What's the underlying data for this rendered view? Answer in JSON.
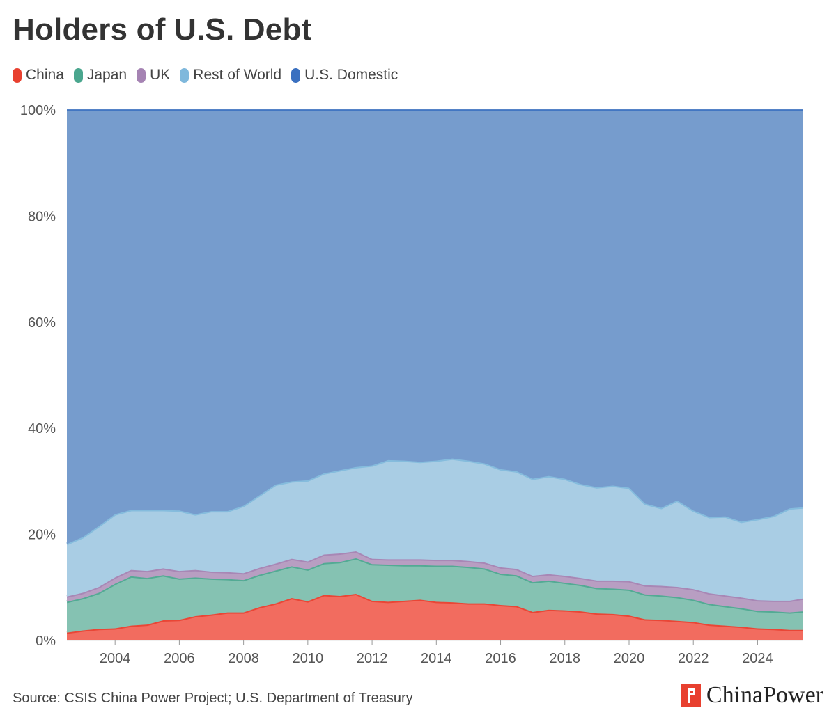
{
  "chart_data": {
    "type": "area",
    "title": "Holders of U.S. Debt",
    "stacking": "percent",
    "x": [
      2002.5,
      2003.0,
      2003.5,
      2004.0,
      2004.5,
      2005.0,
      2005.5,
      2006.0,
      2006.5,
      2007.0,
      2007.5,
      2008.0,
      2008.5,
      2009.0,
      2009.5,
      2010.0,
      2010.5,
      2011.0,
      2011.5,
      2012.0,
      2012.5,
      2013.0,
      2013.5,
      2014.0,
      2014.5,
      2015.0,
      2015.5,
      2016.0,
      2016.5,
      2017.0,
      2017.5,
      2018.0,
      2018.5,
      2019.0,
      2019.5,
      2020.0,
      2020.5,
      2021.0,
      2021.5,
      2022.0,
      2022.5,
      2023.0,
      2023.5,
      2024.0,
      2024.5,
      2025.0,
      2025.4
    ],
    "series": [
      {
        "name": "China",
        "color": "#f26c5f",
        "values": [
          1.5,
          1.9,
          2.2,
          2.3,
          2.8,
          3.0,
          3.8,
          3.9,
          4.6,
          4.9,
          5.3,
          5.3,
          6.3,
          7.0,
          8.0,
          7.4,
          8.6,
          8.4,
          8.8,
          7.5,
          7.3,
          7.5,
          7.7,
          7.3,
          7.2,
          7.0,
          7.0,
          6.7,
          6.5,
          5.4,
          5.8,
          5.7,
          5.5,
          5.1,
          5.0,
          4.7,
          4.0,
          3.9,
          3.7,
          3.5,
          3.0,
          2.8,
          2.6,
          2.3,
          2.2,
          2.0,
          2.0
        ]
      },
      {
        "name": "Japan",
        "color": "#85c2b2",
        "values": [
          5.8,
          6.1,
          6.8,
          8.4,
          9.3,
          8.8,
          8.5,
          7.8,
          7.3,
          6.8,
          6.3,
          6.1,
          6.1,
          6.2,
          6.0,
          6.0,
          6.0,
          6.4,
          6.7,
          6.9,
          7.0,
          6.7,
          6.5,
          6.8,
          6.9,
          6.9,
          6.6,
          5.9,
          5.8,
          5.6,
          5.5,
          5.2,
          5.0,
          4.8,
          4.8,
          4.9,
          4.7,
          4.6,
          4.5,
          4.2,
          3.9,
          3.7,
          3.5,
          3.3,
          3.3,
          3.3,
          3.5
        ]
      },
      {
        "name": "UK",
        "color": "#b89ec2",
        "values": [
          1.0,
          1.0,
          1.1,
          1.2,
          1.2,
          1.3,
          1.3,
          1.4,
          1.4,
          1.3,
          1.3,
          1.3,
          1.3,
          1.3,
          1.4,
          1.5,
          1.6,
          1.6,
          1.3,
          1.0,
          1.0,
          1.1,
          1.1,
          1.1,
          1.1,
          1.1,
          1.1,
          1.2,
          1.2,
          1.2,
          1.2,
          1.3,
          1.3,
          1.4,
          1.5,
          1.6,
          1.7,
          1.8,
          1.9,
          2.0,
          2.0,
          2.0,
          2.0,
          2.0,
          2.0,
          2.2,
          2.4
        ]
      },
      {
        "name": "Rest of World",
        "color": "#a9cde4",
        "values": [
          9.9,
          10.5,
          11.5,
          11.9,
          11.3,
          11.5,
          11.0,
          11.4,
          10.5,
          11.4,
          11.5,
          12.7,
          13.7,
          14.9,
          14.6,
          15.3,
          15.3,
          15.7,
          15.9,
          17.6,
          18.7,
          18.6,
          18.4,
          18.7,
          19.1,
          18.9,
          18.7,
          18.5,
          18.4,
          18.3,
          18.5,
          18.3,
          17.7,
          17.6,
          17.9,
          17.6,
          15.4,
          14.7,
          16.3,
          14.8,
          14.4,
          14.9,
          14.3,
          15.3,
          16.0,
          17.4,
          17.2
        ]
      },
      {
        "name": "U.S. Domestic",
        "color": "#769ccd",
        "line_color": "#3a70c0",
        "values": [
          81.8,
          80.5,
          78.4,
          76.2,
          75.4,
          75.4,
          75.4,
          75.5,
          76.2,
          75.6,
          75.6,
          74.6,
          72.6,
          70.6,
          70.0,
          69.8,
          68.5,
          67.9,
          67.3,
          67.0,
          66.0,
          66.1,
          66.3,
          66.1,
          65.7,
          66.1,
          66.6,
          67.7,
          68.1,
          69.5,
          69.0,
          69.5,
          70.5,
          71.1,
          70.8,
          71.2,
          74.2,
          75.0,
          73.6,
          75.5,
          76.7,
          76.6,
          77.6,
          77.1,
          76.5,
          75.1,
          74.9
        ]
      }
    ],
    "ylim": [
      0,
      100
    ],
    "y_ticks": [
      "0%",
      "20%",
      "40%",
      "60%",
      "80%",
      "100%"
    ],
    "y_tick_values": [
      0,
      20,
      40,
      60,
      80,
      100
    ],
    "x_ticks": [
      "2004",
      "2006",
      "2008",
      "2010",
      "2012",
      "2014",
      "2016",
      "2018",
      "2020",
      "2022",
      "2024"
    ],
    "x_tick_values": [
      2004,
      2006,
      2008,
      2010,
      2012,
      2014,
      2016,
      2018,
      2020,
      2022,
      2024
    ],
    "xlim": [
      2002.5,
      2025.4
    ],
    "xlabel": "",
    "ylabel": "",
    "grid": true,
    "legend_placement": "top-left",
    "colors": {
      "China": "#e8402f",
      "Japan": "#4aa68e",
      "UK": "#a583b3",
      "Rest of World": "#7fb8dc",
      "U.S. Domestic": "#3a70c0"
    }
  },
  "legend": [
    {
      "label": "China",
      "color": "#e8402f"
    },
    {
      "label": "Japan",
      "color": "#4aa68e"
    },
    {
      "label": "UK",
      "color": "#a583b3"
    },
    {
      "label": "Rest of World",
      "color": "#7fb8dc"
    },
    {
      "label": "U.S. Domestic",
      "color": "#3a70c0"
    }
  ],
  "source": "Source: CSIS China Power Project; U.S. Department of Treasury",
  "brand": {
    "name": "ChinaPower",
    "icon": "china-power-flag-icon"
  }
}
